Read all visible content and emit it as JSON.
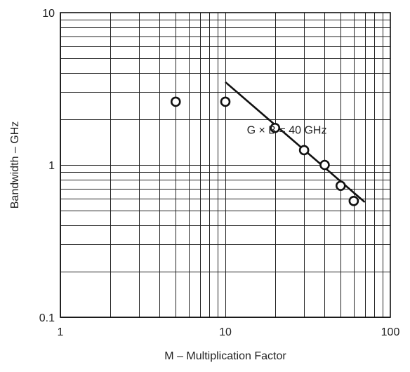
{
  "chart_data": {
    "type": "scatter",
    "title": "",
    "xlabel": "M – Multiplication Factor",
    "ylabel": "Bandwidth – GHz",
    "x_scale": "log",
    "y_scale": "log",
    "xlim": [
      1,
      100
    ],
    "ylim": [
      0.1,
      10
    ],
    "x_ticks": [
      1,
      10,
      100
    ],
    "x_tick_labels": [
      "1",
      "10",
      "100"
    ],
    "y_ticks": [
      0.1,
      1,
      10
    ],
    "y_tick_labels": [
      "0.1",
      "1",
      "10"
    ],
    "grid": true,
    "series": [
      {
        "marker": "open-circle",
        "x": [
          5,
          10,
          20,
          30,
          40,
          50,
          60
        ],
        "y": [
          2.6,
          2.6,
          1.75,
          1.25,
          1.0,
          0.73,
          0.58
        ]
      },
      {
        "style": "line",
        "x": [
          10,
          70
        ],
        "y": [
          3.5,
          0.57
        ]
      }
    ],
    "annotations": [
      {
        "text": "G × B = 40 GHz",
        "x": 13.5,
        "y": 1.6
      }
    ]
  }
}
